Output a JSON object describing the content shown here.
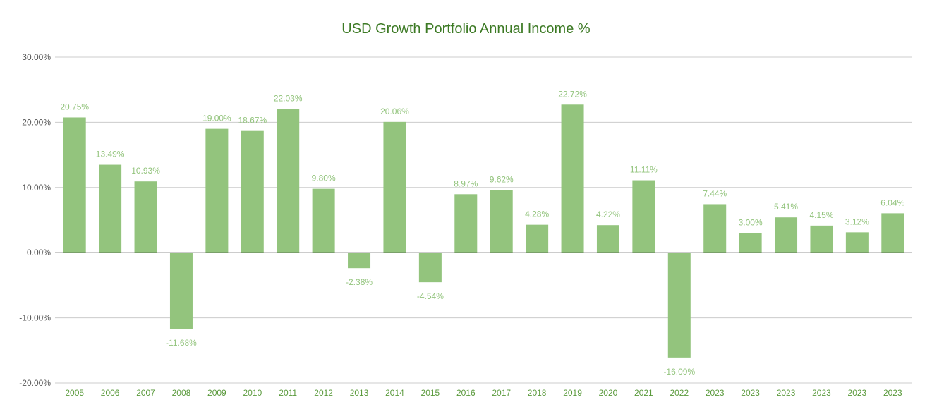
{
  "chart_data": {
    "type": "bar",
    "title": "USD Growth Portfolio Annual Income %",
    "xlabel": "",
    "ylabel": "",
    "ylim": [
      -20,
      30
    ],
    "yticks": [
      30,
      20,
      10,
      0,
      -10,
      -20
    ],
    "ytick_labels": [
      "30.00%",
      "20.00%",
      "10.00%",
      "0.00%",
      "-10.00%",
      "-20.00%"
    ],
    "grid": true,
    "legend": "none",
    "bar_color": "#93c47d",
    "label_color": "#93c47d",
    "title_color": "#3d7a25",
    "categories": [
      "2005",
      "2006",
      "2007",
      "2008",
      "2009",
      "2010",
      "2011",
      "2012",
      "2013",
      "2014",
      "2015",
      "2016",
      "2017",
      "2018",
      "2019",
      "2020",
      "2021",
      "2022",
      "2023",
      "2023",
      "2023",
      "2023",
      "2023",
      "2023"
    ],
    "values": [
      20.75,
      13.49,
      10.93,
      -11.68,
      19.0,
      18.67,
      22.03,
      9.8,
      -2.38,
      20.06,
      -4.54,
      8.97,
      9.62,
      4.28,
      22.72,
      4.22,
      11.11,
      -16.09,
      7.44,
      3.0,
      5.41,
      4.15,
      3.12,
      6.04
    ],
    "data_labels": [
      "20.75%",
      "13.49%",
      "10.93%",
      "-11.68%",
      "19.00%",
      "18.67%",
      "22.03%",
      "9.80%",
      "-2.38%",
      "20.06%",
      "-4.54%",
      "8.97%",
      "9.62%",
      "4.28%",
      "22.72%",
      "4.22%",
      "11.11%",
      "-16.09%",
      "7.44%",
      "3.00%",
      "5.41%",
      "4.15%",
      "3.12%",
      "6.04%"
    ]
  }
}
